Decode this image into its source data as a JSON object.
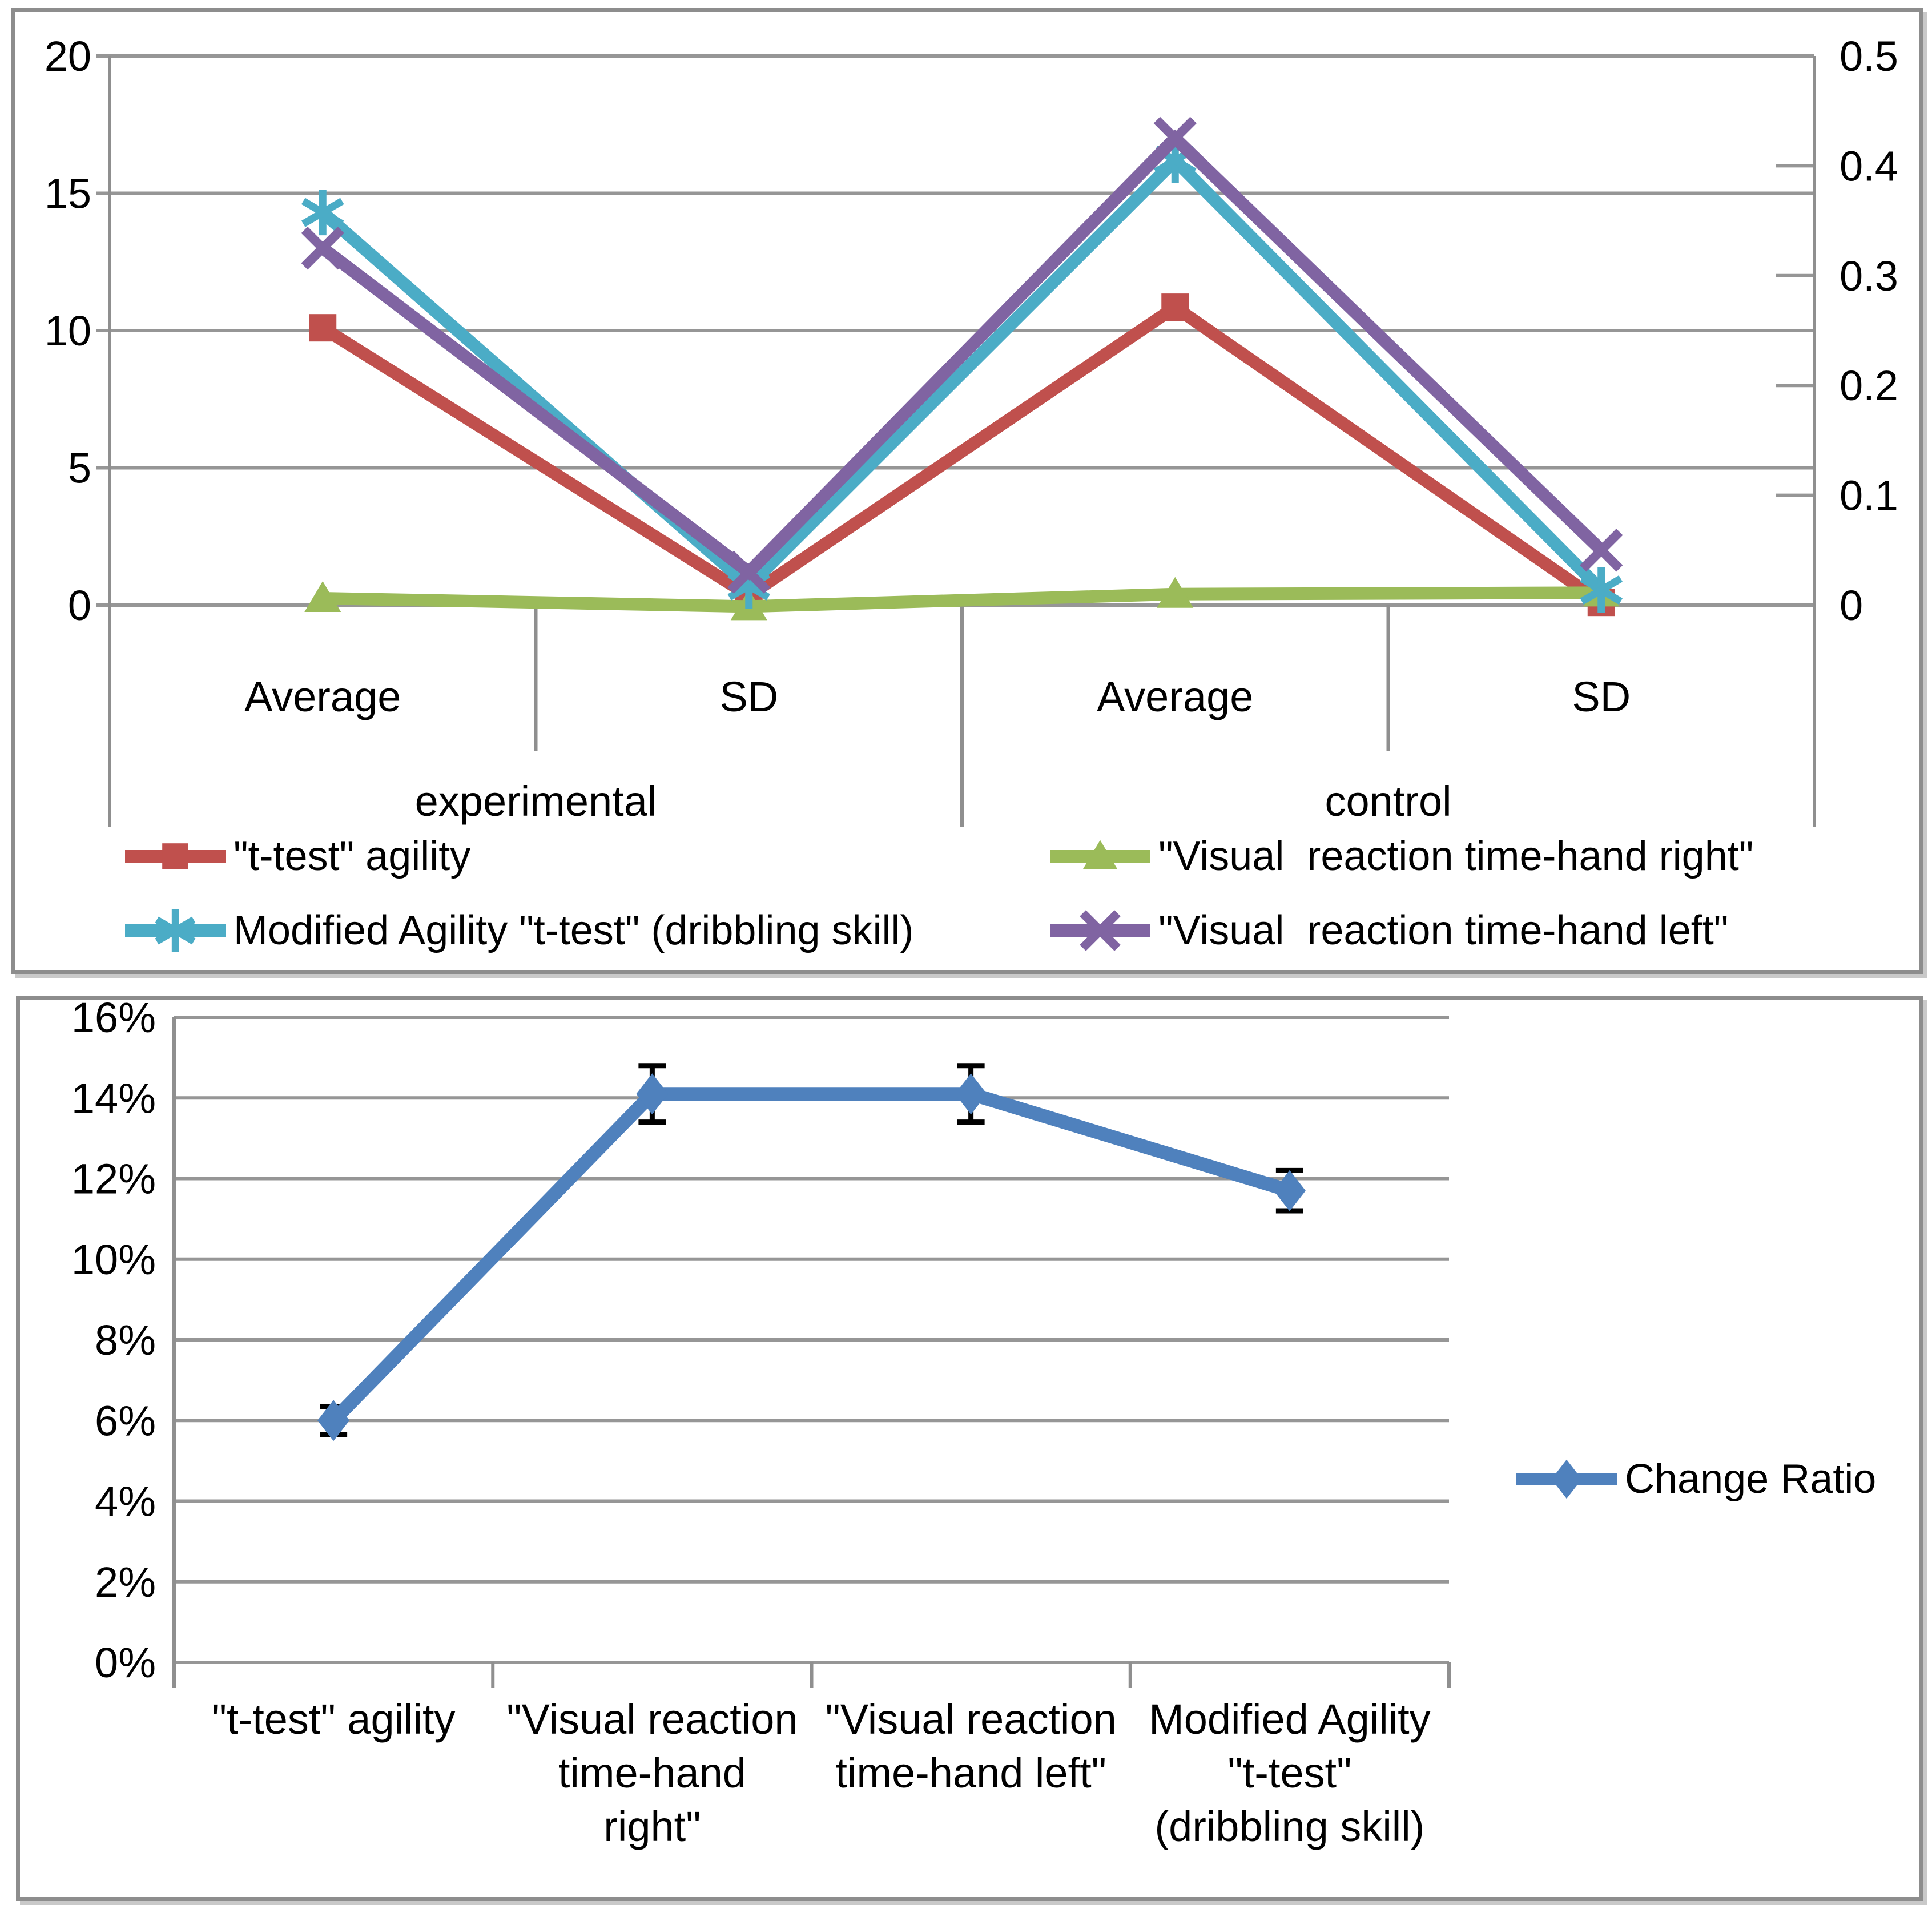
{
  "style": {
    "background": "#FFFFFF",
    "gridline_color": "#969696",
    "axis_color": "#8F8F8F",
    "panel_border_color": "#8D8D8D",
    "text_color": "#000000",
    "error_bar_color": "#000000"
  },
  "chart_data": [
    {
      "type": "line",
      "panel": "top",
      "grid": true,
      "legend_position": "bottom",
      "categories": [
        "Average",
        "SD",
        "Average",
        "SD"
      ],
      "category_groups": [
        "experimental",
        "control"
      ],
      "axes": {
        "primary_y": {
          "min": 0,
          "max": 20,
          "tick_labels": [
            "20",
            "15",
            "10",
            "5",
            "0"
          ],
          "tick_values": [
            20,
            15,
            10,
            5,
            0
          ]
        },
        "secondary_y": {
          "min": 0,
          "max": 0.5,
          "tick_labels": [
            "0.5",
            "0.4",
            "0.3",
            "0.2",
            "0.1",
            "0"
          ],
          "tick_values": [
            0.5,
            0.4,
            0.3,
            0.2,
            0.1,
            0
          ]
        }
      },
      "series": [
        {
          "name": "\"t-test\" agility",
          "axis": "primary",
          "marker": "square",
          "color": "#C0504D",
          "values": [
            10.1,
            0.35,
            10.85,
            0.1
          ]
        },
        {
          "name": "\"Visual  reaction time-hand right\"",
          "axis": "primary",
          "marker": "triangle",
          "color": "#9BBB59",
          "values": [
            0.25,
            -0.05,
            0.4,
            0.45
          ]
        },
        {
          "name": "Modified Agility \"t-test\" (dribbling skill)",
          "axis": "primary",
          "marker": "asterisk",
          "color": "#4BACC6",
          "values": [
            14.3,
            0.7,
            16.2,
            0.55
          ]
        },
        {
          "name": "\"Visual  reaction time-hand left\"",
          "axis": "secondary",
          "marker": "x",
          "color": "#8064A2",
          "values": [
            0.325,
            0.03,
            0.425,
            0.05
          ]
        }
      ]
    },
    {
      "type": "line",
      "panel": "bottom",
      "grid": true,
      "legend_position": "right",
      "categories": [
        [
          "\"t-test\" agility"
        ],
        [
          "\"Visual  reaction",
          "time-hand",
          "right\""
        ],
        [
          "\"Visual  reaction",
          "time-hand left\""
        ],
        [
          "Modified Agility",
          "\"t-test\"",
          "(dribbling skill)"
        ]
      ],
      "y_axis": {
        "min": 0,
        "max": 16,
        "step": 2,
        "format": "percent",
        "tick_labels": [
          "16%",
          "14%",
          "12%",
          "10%",
          "8%",
          "6%",
          "4%",
          "2%",
          "0%"
        ],
        "tick_values": [
          16,
          14,
          12,
          10,
          8,
          6,
          4,
          2,
          0
        ]
      },
      "series": [
        {
          "name": "Change Ratio",
          "marker": "diamond",
          "color": "#4F81BD",
          "values": [
            6.0,
            14.1,
            14.1,
            11.7
          ],
          "error_bars": [
            0.35,
            0.7,
            0.7,
            0.5
          ]
        }
      ]
    }
  ]
}
